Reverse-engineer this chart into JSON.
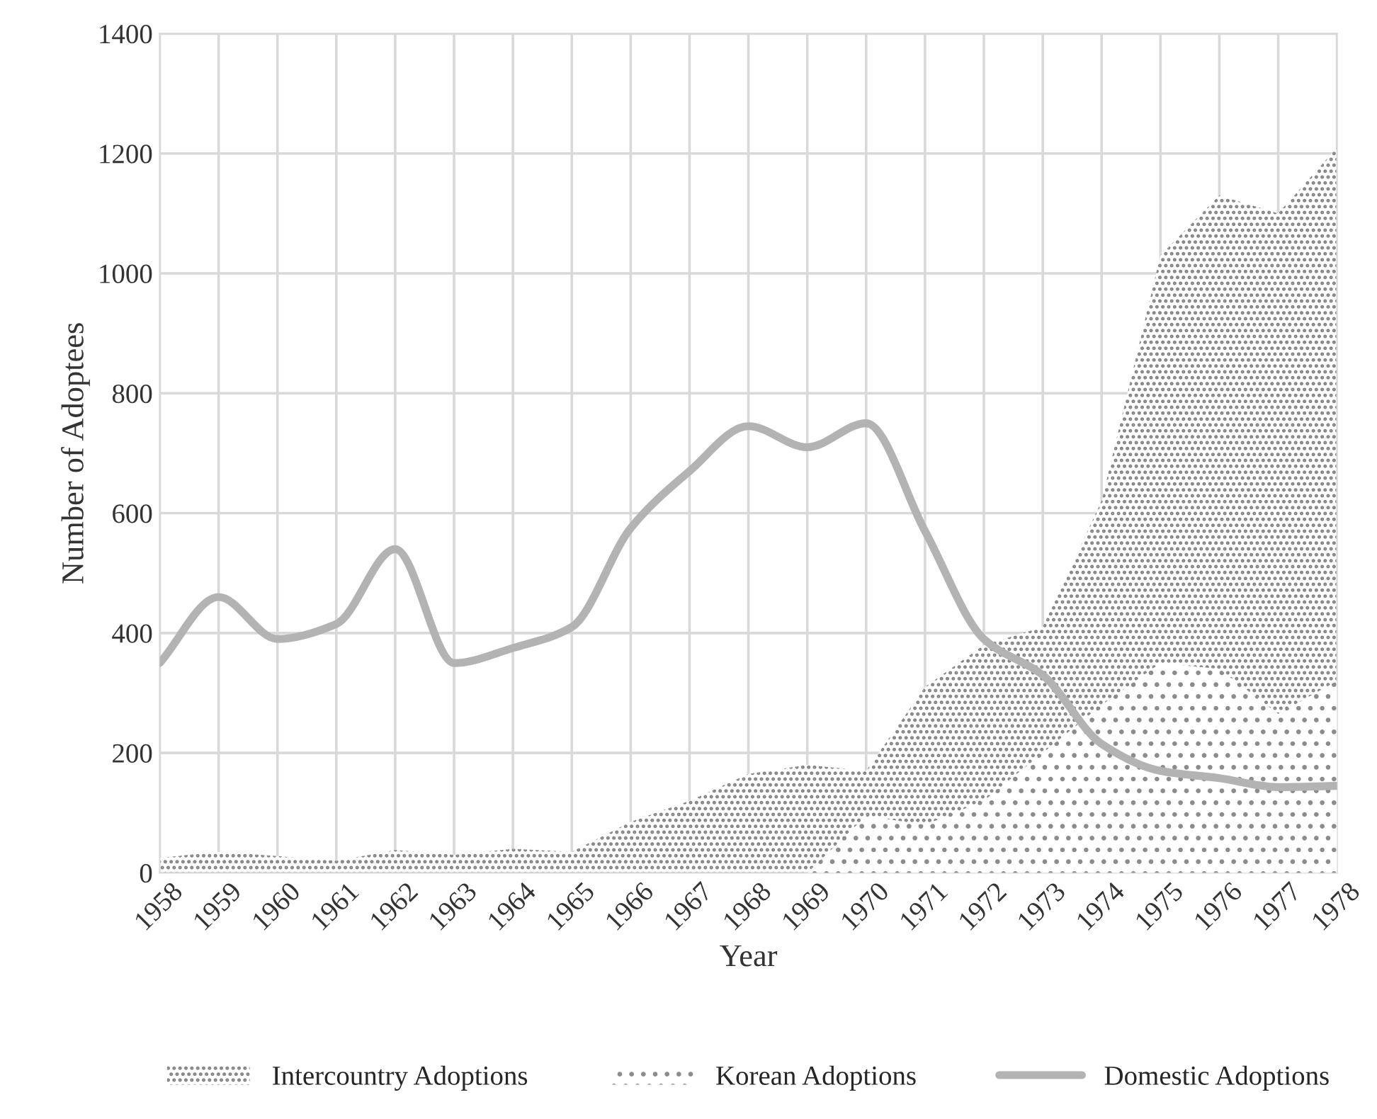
{
  "chart_data": {
    "type": "area",
    "xlabel": "Year",
    "ylabel": "Number of Adoptees",
    "categories": [
      "1958",
      "1959",
      "1960",
      "1961",
      "1962",
      "1963",
      "1964",
      "1965",
      "1966",
      "1967",
      "1968",
      "1969",
      "1970",
      "1971",
      "1972",
      "1973",
      "1974",
      "1975",
      "1976",
      "1977",
      "1978"
    ],
    "series": [
      {
        "name": "Intercountry Adoptions",
        "color": "#7f7f7f",
        "values": [
          25,
          35,
          28,
          20,
          38,
          30,
          40,
          35,
          85,
          120,
          165,
          180,
          170,
          310,
          380,
          410,
          620,
          1030,
          1130,
          1100,
          1210
        ]
      },
      {
        "name": "Korean Adoptions",
        "color": "#8c8c8c",
        "values": [
          0,
          0,
          0,
          0,
          0,
          0,
          0,
          0,
          0,
          0,
          0,
          0,
          95,
          80,
          120,
          200,
          280,
          350,
          340,
          265,
          320
        ]
      },
      {
        "name": "Domestic Adoptions",
        "type": "line",
        "color": "#b3b3b3",
        "values": [
          350,
          460,
          390,
          415,
          540,
          350,
          375,
          410,
          575,
          670,
          745,
          710,
          750,
          570,
          390,
          330,
          215,
          170,
          158,
          143,
          145
        ]
      }
    ],
    "ylim": [
      0,
      1400
    ],
    "yticks": [
      0,
      200,
      400,
      600,
      800,
      1000,
      1200,
      1400
    ],
    "grid": true,
    "legend": "bottom",
    "line_style": "solid",
    "marker": "none"
  }
}
